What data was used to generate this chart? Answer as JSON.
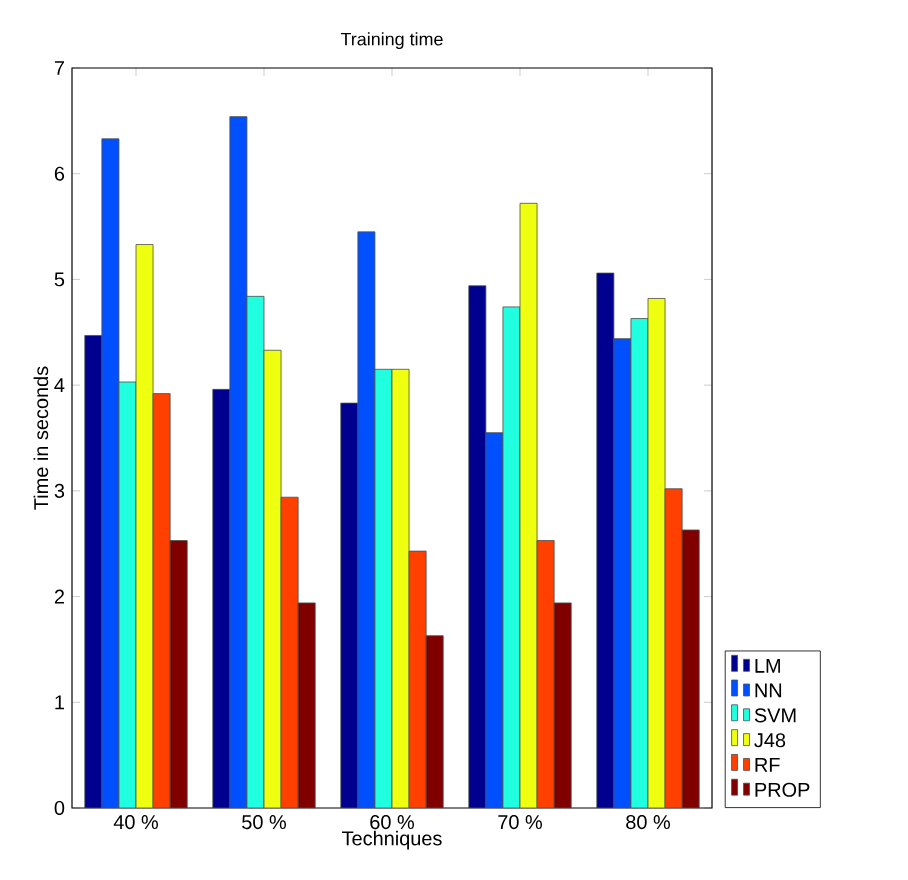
{
  "chart_data": {
    "type": "bar",
    "title": "Training time",
    "xlabel": "Techniques",
    "ylabel": "Time in seconds",
    "categories": [
      "40 %",
      "50 %",
      "60 %",
      "70 %",
      "80 %"
    ],
    "series": [
      {
        "name": "LM",
        "color": "#00008f",
        "values": [
          4.47,
          3.96,
          3.83,
          4.94,
          5.06
        ]
      },
      {
        "name": "NN",
        "color": "#0050ff",
        "values": [
          6.33,
          6.54,
          5.45,
          3.55,
          4.44
        ]
      },
      {
        "name": "SVM",
        "color": "#20ffdf",
        "values": [
          4.03,
          4.84,
          4.15,
          4.74,
          4.63
        ]
      },
      {
        "name": "J48",
        "color": "#efff10",
        "values": [
          5.33,
          4.33,
          4.15,
          5.72,
          4.82
        ]
      },
      {
        "name": "RF",
        "color": "#ff4000",
        "values": [
          3.92,
          2.94,
          2.43,
          2.53,
          3.02
        ]
      },
      {
        "name": "PROP",
        "color": "#800000",
        "values": [
          2.53,
          1.94,
          1.63,
          1.94,
          2.63
        ]
      }
    ],
    "ylim": [
      0,
      7
    ],
    "yticks": [
      0,
      1,
      2,
      3,
      4,
      5,
      6,
      7
    ],
    "grid": false,
    "legend": "bottom right"
  }
}
